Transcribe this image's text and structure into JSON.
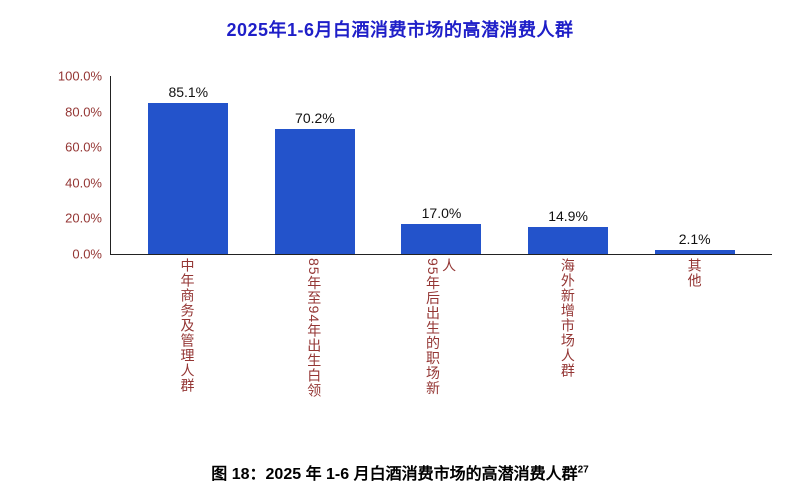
{
  "chart_data": {
    "type": "bar",
    "title": "2025年1-6月白酒消费市场的高潜消费人群",
    "categories": [
      "中年商务及管理人群",
      "85年至94年出生白领",
      "95年后出生的职场新人",
      "海外新增市场人群",
      "其他"
    ],
    "values": [
      85.1,
      70.2,
      17.0,
      14.9,
      2.1
    ],
    "data_labels": [
      "85.1%",
      "70.2%",
      "17.0%",
      "14.9%",
      "2.1%"
    ],
    "ylim": [
      0,
      100
    ],
    "yticks": [
      "100.0%",
      "80.0%",
      "60.0%",
      "40.0%",
      "20.0%",
      "0.0%"
    ],
    "grid": false,
    "legend": "none",
    "xlabel": "",
    "ylabel": "",
    "bar_color": "#2353cb",
    "axis_label_color": "#943634",
    "value_label_color": "#111111",
    "title_color": "#1f1fc8"
  },
  "caption": {
    "text": "图 18：2025 年 1-6 月白酒消费市场的高潜消费人群",
    "superscript": "27"
  }
}
